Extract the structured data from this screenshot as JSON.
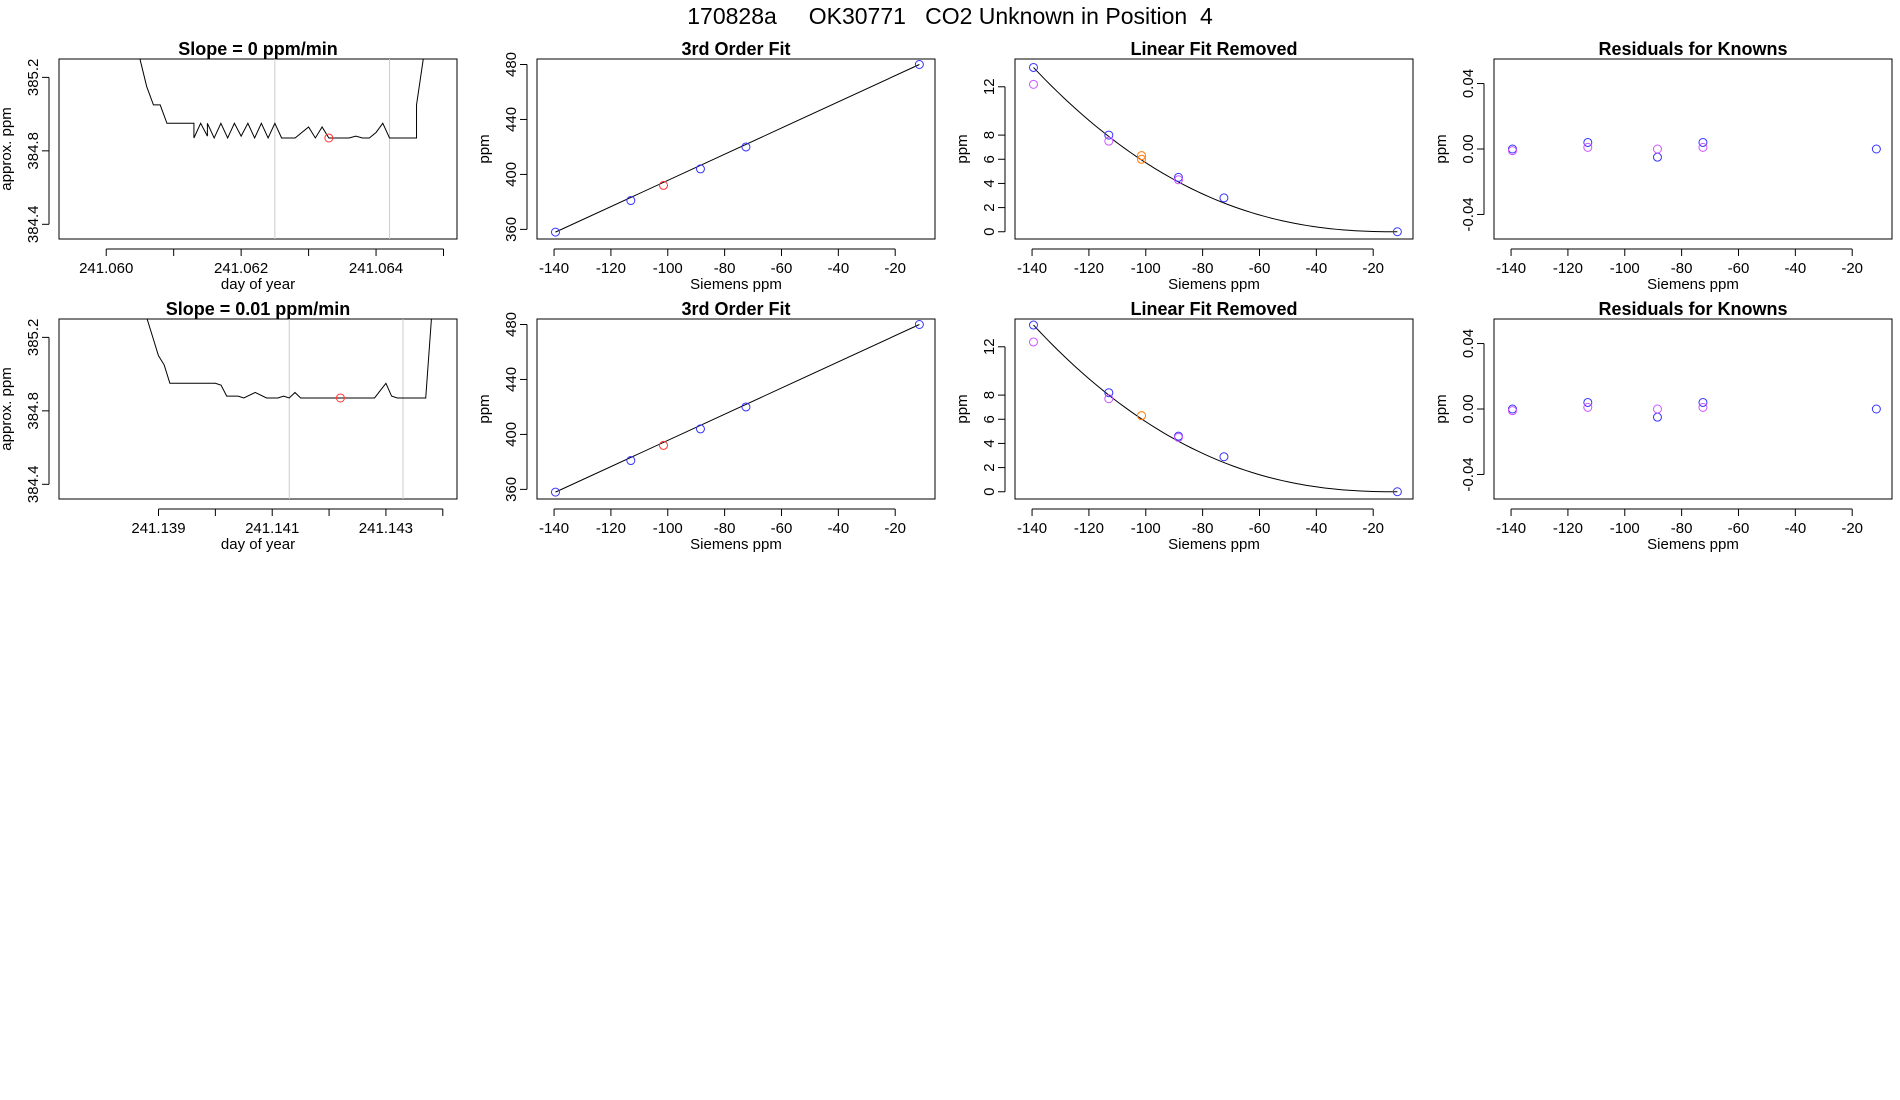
{
  "page": {
    "title": "170828a     OK30771   CO2 Unknown in Position  4"
  },
  "colors": {
    "axis": "#000000",
    "line": "#000000",
    "vline": "#cccccc",
    "unknown": "#ff3333",
    "unknown_fit": "#ff7700",
    "known": "#3333ff",
    "known_alt": "#cc55ff"
  },
  "chart_data": [
    {
      "type": "line",
      "title": "Slope =  0  ppm/min",
      "xlabel": "day of year",
      "ylabel": "approx. ppm",
      "xlim": [
        241.0593,
        241.0652
      ],
      "ylim": [
        384.32,
        385.3
      ],
      "xticks": [
        241.06,
        241.061,
        241.062,
        241.063,
        241.064,
        241.065
      ],
      "xticklabels": [
        "241.060",
        "",
        "241.062",
        "",
        "241.064",
        ""
      ],
      "yticks": [
        384.4,
        384.8,
        385.2
      ],
      "yticklabels": [
        "384.4",
        "384.8",
        "385.2"
      ],
      "vlines": [
        241.0625,
        241.0642
      ],
      "trace": {
        "x": [
          241.0605,
          241.0606,
          241.0607,
          241.0608,
          241.0609,
          241.061,
          241.0611,
          241.0613,
          241.0613,
          241.0614,
          241.0615,
          241.0615,
          241.0616,
          241.0617,
          241.0618,
          241.0619,
          241.062,
          241.0621,
          241.0622,
          241.0623,
          241.0624,
          241.0625,
          241.0626,
          241.0627,
          241.0628,
          241.063,
          241.0631,
          241.0632,
          241.0633,
          241.0634,
          241.0635,
          241.0636,
          241.0637,
          241.0638,
          241.0639,
          241.064,
          241.0641,
          241.0642,
          241.0644,
          241.0646,
          241.0646,
          241.0647
        ],
        "y": [
          385.3,
          385.15,
          385.05,
          385.05,
          384.95,
          384.95,
          384.95,
          384.95,
          384.87,
          384.95,
          384.88,
          384.95,
          384.87,
          384.95,
          384.87,
          384.95,
          384.88,
          384.95,
          384.87,
          384.95,
          384.87,
          384.95,
          384.87,
          384.87,
          384.87,
          384.93,
          384.87,
          384.93,
          384.87,
          384.87,
          384.87,
          384.87,
          384.88,
          384.87,
          384.87,
          384.9,
          384.95,
          384.87,
          384.87,
          384.87,
          385.05,
          385.3
        ]
      },
      "points": [
        {
          "x": 241.0633,
          "y": 384.87,
          "kind": "unknown"
        }
      ]
    },
    {
      "type": "scatter",
      "title": "3rd Order Fit",
      "xlabel": "Siemens ppm",
      "ylabel": "ppm",
      "xlim": [
        -146,
        -6
      ],
      "ylim": [
        353,
        484
      ],
      "xticks": [
        -140,
        -120,
        -100,
        -80,
        -60,
        -40,
        -20
      ],
      "xticklabels": [
        "-140",
        "-120",
        "-100",
        "-80",
        "-60",
        "-40",
        "-20"
      ],
      "yticks": [
        360,
        400,
        440,
        480
      ],
      "yticklabels": [
        "360",
        "400",
        "440",
        "480"
      ],
      "curve": {
        "x": [
          -139.5,
          -11.5
        ],
        "y": [
          358,
          480
        ]
      },
      "points": [
        {
          "x": -139.5,
          "y": 358,
          "kind": "known"
        },
        {
          "x": -113,
          "y": 381,
          "kind": "known"
        },
        {
          "x": -101.5,
          "y": 392,
          "kind": "unknown"
        },
        {
          "x": -88.5,
          "y": 404,
          "kind": "known"
        },
        {
          "x": -72.5,
          "y": 420,
          "kind": "known"
        },
        {
          "x": -11.5,
          "y": 480,
          "kind": "known"
        }
      ]
    },
    {
      "type": "scatter",
      "title": "Linear Fit Removed",
      "xlabel": "Siemens ppm",
      "ylabel": "ppm",
      "xlim": [
        -146,
        -6
      ],
      "ylim": [
        -0.6,
        14.3
      ],
      "xticks": [
        -140,
        -120,
        -100,
        -80,
        -60,
        -40,
        -20
      ],
      "xticklabels": [
        "-140",
        "-120",
        "-100",
        "-80",
        "-60",
        "-40",
        "-20"
      ],
      "yticks": [
        0,
        2,
        4,
        6,
        8,
        12
      ],
      "yticklabels": [
        "0",
        "2",
        "4",
        "6",
        "8",
        "12"
      ],
      "curve_cubic": {
        "x0": -139.5,
        "x1": -11.5,
        "y0": 13.6,
        "p": 2.35
      },
      "points": [
        {
          "x": -139.5,
          "y": 13.6,
          "kind": "known"
        },
        {
          "x": -139.5,
          "y": 12.2,
          "kind": "known_alt"
        },
        {
          "x": -113,
          "y": 8.0,
          "kind": "known"
        },
        {
          "x": -113,
          "y": 7.5,
          "kind": "known_alt"
        },
        {
          "x": -101.5,
          "y": 6.3,
          "kind": "unknown_fit"
        },
        {
          "x": -101.5,
          "y": 6.0,
          "kind": "unknown_fit"
        },
        {
          "x": -88.5,
          "y": 4.5,
          "kind": "known"
        },
        {
          "x": -88.5,
          "y": 4.3,
          "kind": "known_alt"
        },
        {
          "x": -72.5,
          "y": 2.8,
          "kind": "known"
        },
        {
          "x": -11.5,
          "y": 0.0,
          "kind": "known"
        }
      ]
    },
    {
      "type": "scatter",
      "title": "Residuals for Knowns",
      "xlabel": "Siemens ppm",
      "ylabel": "ppm",
      "xlim": [
        -146,
        -6
      ],
      "ylim": [
        -0.055,
        0.055
      ],
      "xticks": [
        -140,
        -120,
        -100,
        -80,
        -60,
        -40,
        -20
      ],
      "xticklabels": [
        "-140",
        "-120",
        "-100",
        "-80",
        "-60",
        "-40",
        "-20"
      ],
      "yticks": [
        -0.04,
        0.0,
        0.04
      ],
      "yticklabels": [
        "-0.04",
        "0.00",
        "0.04"
      ],
      "points": [
        {
          "x": -139.5,
          "y": 0.0,
          "kind": "known"
        },
        {
          "x": -139.5,
          "y": -0.001,
          "kind": "known_alt"
        },
        {
          "x": -113,
          "y": 0.004,
          "kind": "known"
        },
        {
          "x": -113,
          "y": 0.001,
          "kind": "known_alt"
        },
        {
          "x": -88.5,
          "y": -0.005,
          "kind": "known"
        },
        {
          "x": -88.5,
          "y": 0.0,
          "kind": "known_alt"
        },
        {
          "x": -72.5,
          "y": 0.004,
          "kind": "known"
        },
        {
          "x": -72.5,
          "y": 0.001,
          "kind": "known_alt"
        },
        {
          "x": -11.5,
          "y": 0.0,
          "kind": "known"
        }
      ]
    },
    {
      "type": "line",
      "title": "Slope =  0.01  ppm/min",
      "xlabel": "day of year",
      "ylabel": "approx. ppm",
      "xlim": [
        241.13725,
        241.14425
      ],
      "ylim": [
        384.32,
        385.3
      ],
      "xticks": [
        241.139,
        241.14,
        241.141,
        241.142,
        241.143,
        241.144
      ],
      "xticklabels": [
        "241.139",
        "",
        "241.141",
        "",
        "241.143",
        ""
      ],
      "yticks": [
        384.4,
        384.8,
        385.2
      ],
      "yticklabels": [
        "384.4",
        "384.8",
        "385.2"
      ],
      "vlines": [
        241.1413,
        241.1433
      ],
      "trace": {
        "x": [
          241.1388,
          241.1389,
          241.139,
          241.1391,
          241.1392,
          241.1394,
          241.1396,
          241.1398,
          241.14,
          241.1401,
          241.1402,
          241.1403,
          241.1404,
          241.1405,
          241.1407,
          241.1409,
          241.1411,
          241.1412,
          241.1413,
          241.1414,
          241.1415,
          241.1418,
          241.142,
          241.1422,
          241.1425,
          241.1428,
          241.143,
          241.1431,
          241.1432,
          241.1435,
          241.1437,
          241.1438
        ],
        "y": [
          385.3,
          385.2,
          385.1,
          385.05,
          384.95,
          384.95,
          384.95,
          384.95,
          384.95,
          384.94,
          384.88,
          384.88,
          384.88,
          384.87,
          384.9,
          384.87,
          384.87,
          384.88,
          384.87,
          384.9,
          384.87,
          384.87,
          384.87,
          384.87,
          384.87,
          384.87,
          384.95,
          384.88,
          384.87,
          384.87,
          384.87,
          385.3
        ]
      },
      "points": [
        {
          "x": 241.1422,
          "y": 384.87,
          "kind": "unknown"
        }
      ]
    },
    {
      "type": "scatter",
      "title": "3rd Order Fit",
      "xlabel": "Siemens ppm",
      "ylabel": "ppm",
      "xlim": [
        -146,
        -6
      ],
      "ylim": [
        353,
        484
      ],
      "xticks": [
        -140,
        -120,
        -100,
        -80,
        -60,
        -40,
        -20
      ],
      "xticklabels": [
        "-140",
        "-120",
        "-100",
        "-80",
        "-60",
        "-40",
        "-20"
      ],
      "yticks": [
        360,
        400,
        440,
        480
      ],
      "yticklabels": [
        "360",
        "400",
        "440",
        "480"
      ],
      "curve": {
        "x": [
          -139.5,
          -11.5
        ],
        "y": [
          358,
          480
        ]
      },
      "points": [
        {
          "x": -139.5,
          "y": 358,
          "kind": "known"
        },
        {
          "x": -113,
          "y": 381,
          "kind": "known"
        },
        {
          "x": -101.5,
          "y": 392,
          "kind": "unknown"
        },
        {
          "x": -88.5,
          "y": 404,
          "kind": "known"
        },
        {
          "x": -72.5,
          "y": 420,
          "kind": "known"
        },
        {
          "x": -11.5,
          "y": 480,
          "kind": "known"
        }
      ]
    },
    {
      "type": "scatter",
      "title": "Linear Fit Removed",
      "xlabel": "Siemens ppm",
      "ylabel": "ppm",
      "xlim": [
        -146,
        -6
      ],
      "ylim": [
        -0.6,
        14.3
      ],
      "xticks": [
        -140,
        -120,
        -100,
        -80,
        -60,
        -40,
        -20
      ],
      "xticklabels": [
        "-140",
        "-120",
        "-100",
        "-80",
        "-60",
        "-40",
        "-20"
      ],
      "yticks": [
        0,
        2,
        4,
        6,
        8,
        12
      ],
      "yticklabels": [
        "0",
        "2",
        "4",
        "6",
        "8",
        "12"
      ],
      "curve_cubic": {
        "x0": -139.5,
        "x1": -11.5,
        "y0": 13.8,
        "p": 2.35
      },
      "points": [
        {
          "x": -139.5,
          "y": 13.8,
          "kind": "known"
        },
        {
          "x": -139.5,
          "y": 12.4,
          "kind": "known_alt"
        },
        {
          "x": -113,
          "y": 8.2,
          "kind": "known"
        },
        {
          "x": -113,
          "y": 7.7,
          "kind": "known_alt"
        },
        {
          "x": -101.5,
          "y": 6.3,
          "kind": "unknown_fit"
        },
        {
          "x": -88.5,
          "y": 4.6,
          "kind": "known"
        },
        {
          "x": -88.5,
          "y": 4.5,
          "kind": "known_alt"
        },
        {
          "x": -72.5,
          "y": 2.9,
          "kind": "known"
        },
        {
          "x": -11.5,
          "y": 0.0,
          "kind": "known"
        }
      ]
    },
    {
      "type": "scatter",
      "title": "Residuals for Knowns",
      "xlabel": "Siemens ppm",
      "ylabel": "ppm",
      "xlim": [
        -146,
        -6
      ],
      "ylim": [
        -0.055,
        0.055
      ],
      "xticks": [
        -140,
        -120,
        -100,
        -80,
        -60,
        -40,
        -20
      ],
      "xticklabels": [
        "-140",
        "-120",
        "-100",
        "-80",
        "-60",
        "-40",
        "-20"
      ],
      "yticks": [
        -0.04,
        0.0,
        0.04
      ],
      "yticklabels": [
        "-0.04",
        "0.00",
        "0.04"
      ],
      "points": [
        {
          "x": -139.5,
          "y": 0.0,
          "kind": "known"
        },
        {
          "x": -139.5,
          "y": -0.001,
          "kind": "known_alt"
        },
        {
          "x": -113,
          "y": 0.004,
          "kind": "known"
        },
        {
          "x": -113,
          "y": 0.001,
          "kind": "known_alt"
        },
        {
          "x": -88.5,
          "y": -0.005,
          "kind": "known"
        },
        {
          "x": -88.5,
          "y": 0.0,
          "kind": "known_alt"
        },
        {
          "x": -72.5,
          "y": 0.004,
          "kind": "known"
        },
        {
          "x": -72.5,
          "y": 0.001,
          "kind": "known_alt"
        },
        {
          "x": -11.5,
          "y": 0.0,
          "kind": "known"
        }
      ]
    }
  ]
}
